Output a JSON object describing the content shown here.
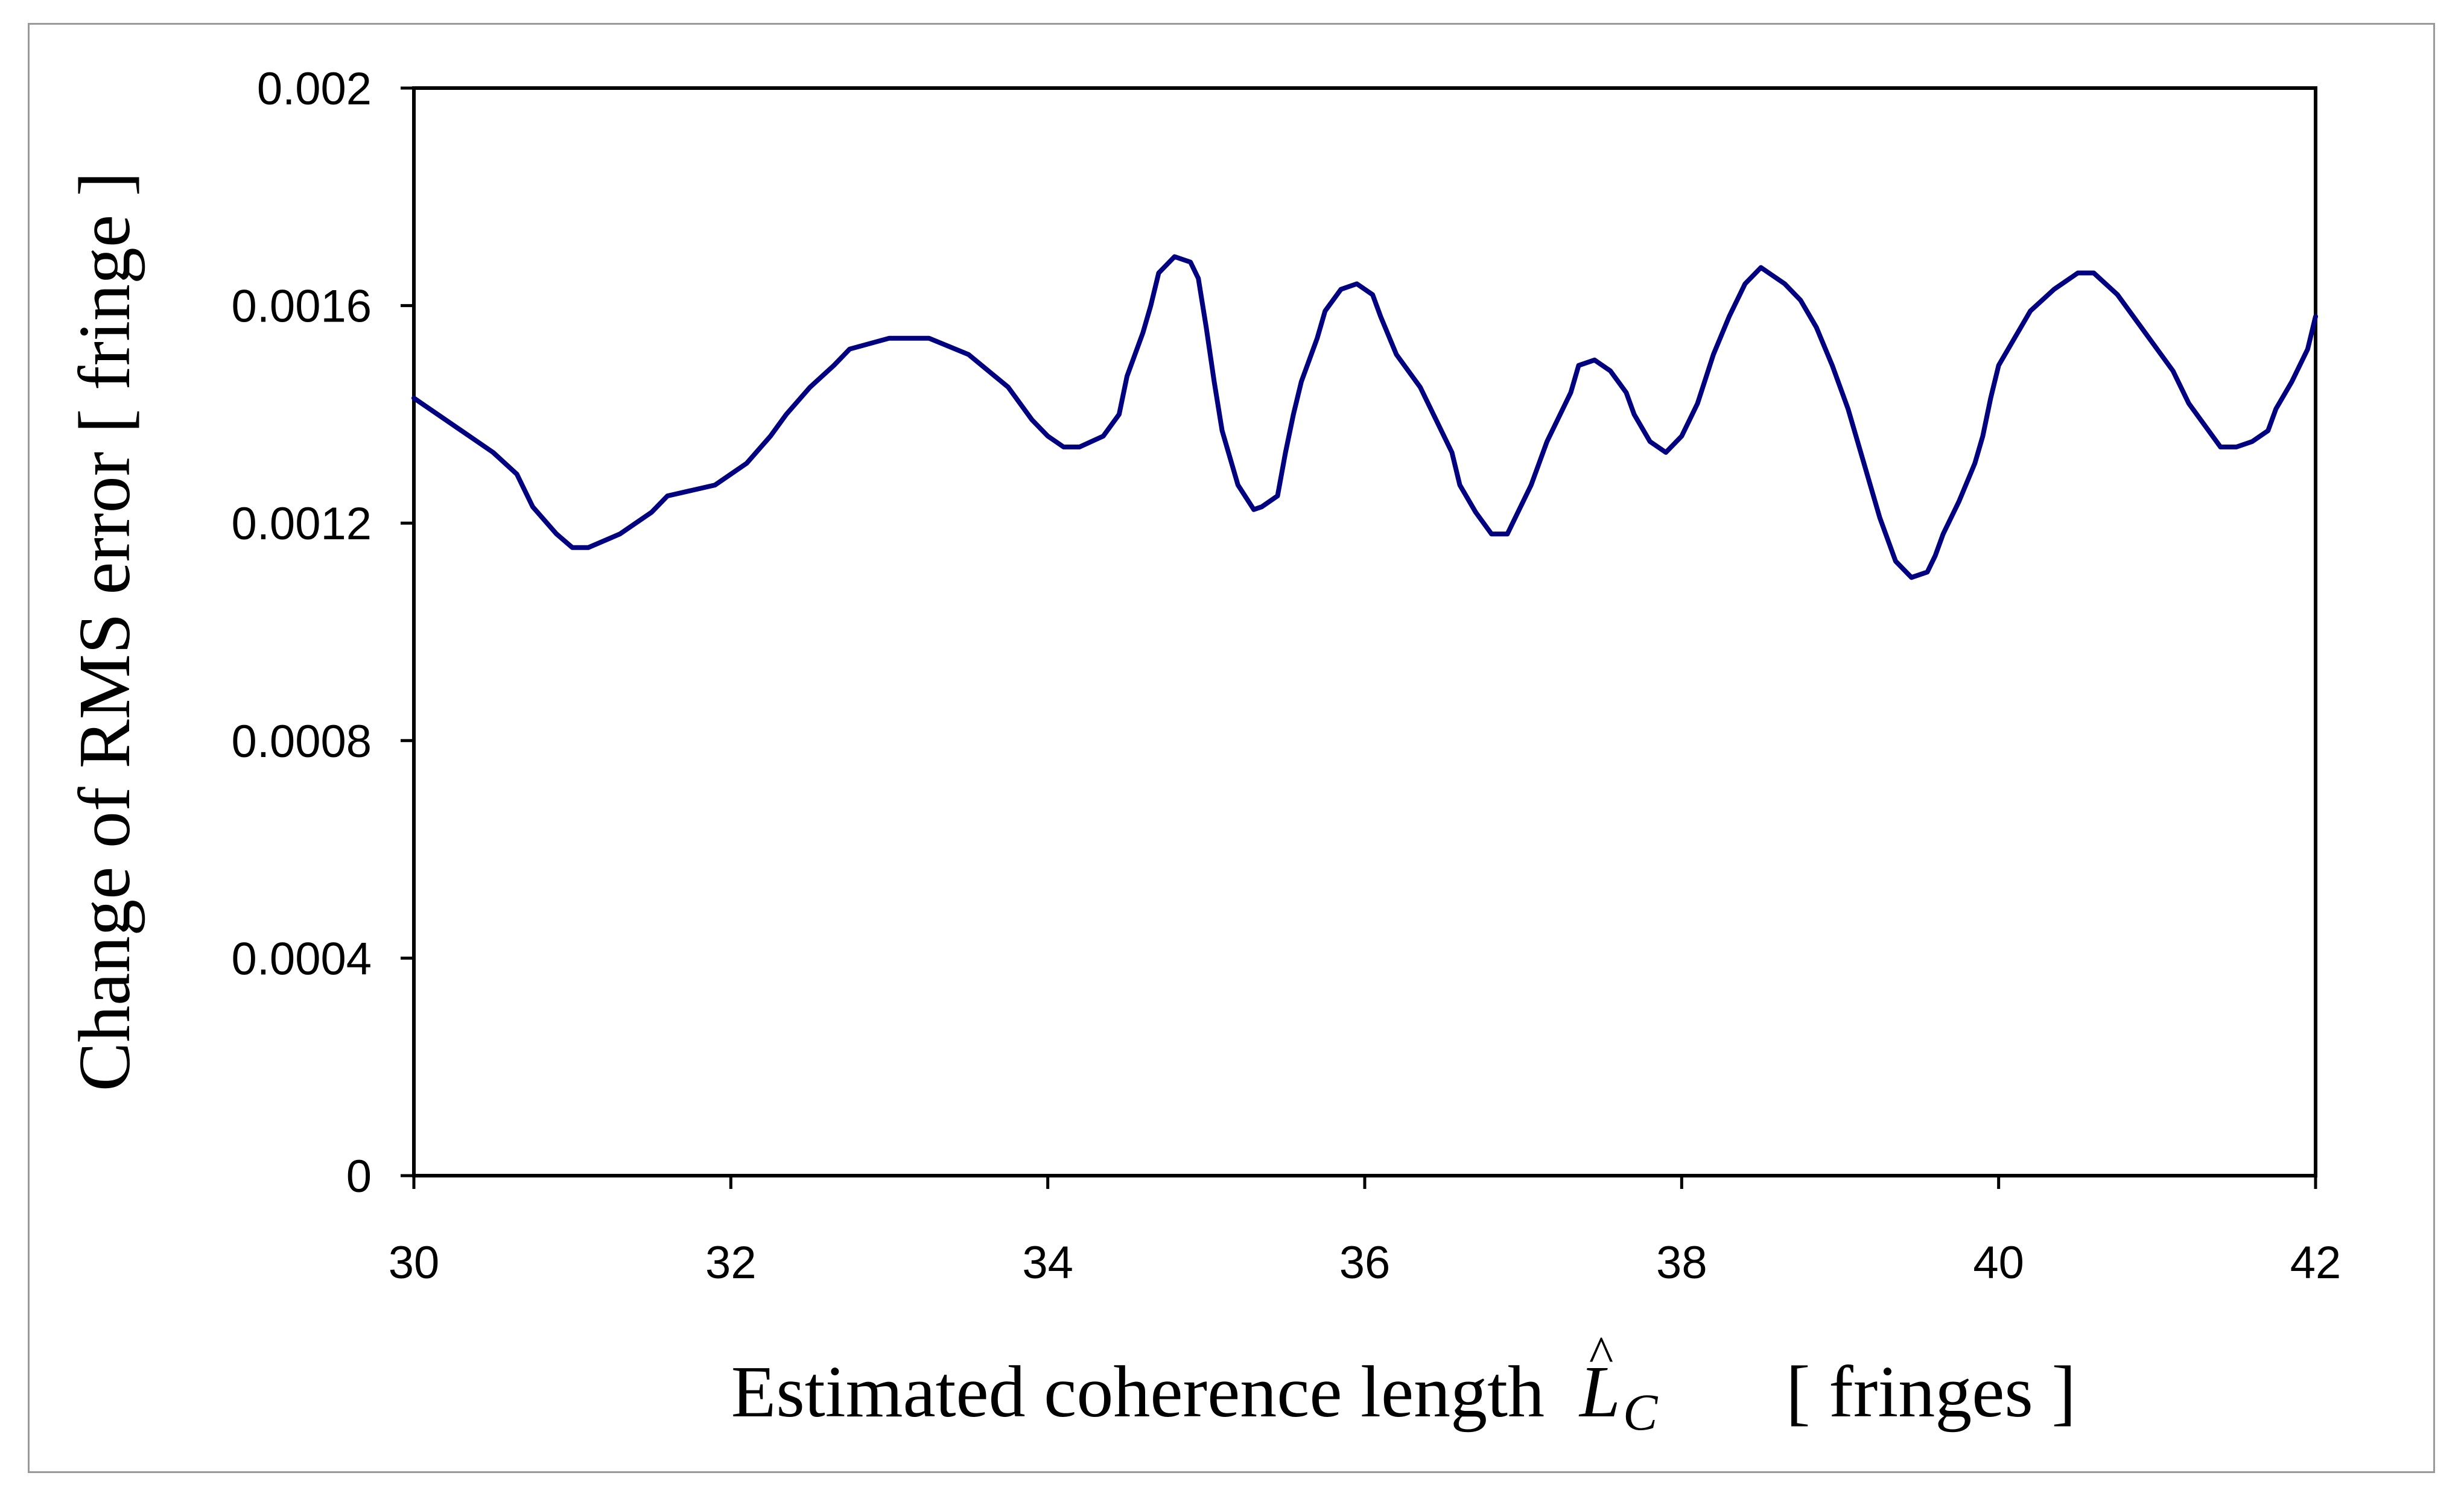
{
  "chart_data": {
    "type": "line",
    "title": "",
    "xlabel": {
      "prefix": "Estimated coherence length",
      "symbol": "L",
      "symbol_subscript": "C",
      "symbol_accent": "^",
      "unit": "[ fringes ]"
    },
    "ylabel": "Change of RMS error [ fringe ]",
    "xlim": [
      30,
      42
    ],
    "ylim": [
      0,
      0.002
    ],
    "x_ticks": [
      30,
      32,
      34,
      36,
      38,
      40,
      42
    ],
    "x_tick_labels": [
      "30",
      "32",
      "34",
      "36",
      "38",
      "40",
      "42"
    ],
    "y_ticks": [
      0,
      0.0004,
      0.0008,
      0.0012,
      0.0016,
      0.002
    ],
    "y_tick_labels": [
      "0",
      "0.0004",
      "0.0008",
      "0.0012",
      "0.0016",
      "0.002"
    ],
    "grid": false,
    "legend": "none",
    "series": [
      {
        "color": "#000080",
        "x": [
          30.0,
          30.2,
          30.4,
          30.5,
          30.65,
          30.75,
          30.9,
          31.0,
          31.1,
          31.3,
          31.5,
          31.6,
          31.75,
          31.9,
          32.0,
          32.1,
          32.25,
          32.35,
          32.5,
          32.65,
          32.75,
          33.0,
          33.25,
          33.5,
          33.75,
          33.9,
          34.0,
          34.1,
          34.2,
          34.35,
          34.45,
          34.5,
          34.6,
          34.65,
          34.7,
          34.8,
          34.9,
          34.95,
          35.0,
          35.05,
          35.1,
          35.2,
          35.3,
          35.35,
          35.45,
          35.5,
          35.55,
          35.6,
          35.7,
          35.75,
          35.85,
          35.95,
          36.05,
          36.1,
          36.2,
          36.35,
          36.45,
          36.55,
          36.6,
          36.7,
          36.8,
          36.9,
          36.95,
          37.05,
          37.15,
          37.3,
          37.35,
          37.45,
          37.55,
          37.65,
          37.7,
          37.8,
          37.9,
          38.0,
          38.1,
          38.2,
          38.3,
          38.4,
          38.5,
          38.55,
          38.65,
          38.75,
          38.85,
          38.95,
          39.05,
          39.15,
          39.25,
          39.35,
          39.45,
          39.55,
          39.6,
          39.65,
          39.75,
          39.85,
          39.9,
          39.95,
          40.0,
          40.1,
          40.2,
          40.35,
          40.5,
          40.6,
          40.75,
          40.85,
          41.0,
          41.1,
          41.2,
          41.3,
          41.4,
          41.5,
          41.6,
          41.7,
          41.75,
          41.85,
          41.95,
          42.0
        ],
        "y": [
          0.00143,
          0.00139,
          0.00135,
          0.00133,
          0.00129,
          0.00123,
          0.00118,
          0.001155,
          0.001155,
          0.00118,
          0.00122,
          0.00125,
          0.00126,
          0.00127,
          0.00129,
          0.00131,
          0.00136,
          0.0014,
          0.00145,
          0.00149,
          0.00152,
          0.00154,
          0.00154,
          0.00151,
          0.00145,
          0.00139,
          0.00136,
          0.00134,
          0.00134,
          0.00136,
          0.0014,
          0.00147,
          0.00155,
          0.0016,
          0.00166,
          0.00169,
          0.00168,
          0.00165,
          0.00156,
          0.00146,
          0.00137,
          0.00127,
          0.001225,
          0.00123,
          0.00125,
          0.00133,
          0.0014,
          0.00146,
          0.00154,
          0.00159,
          0.00163,
          0.00164,
          0.00162,
          0.00158,
          0.00151,
          0.00145,
          0.00139,
          0.00133,
          0.00127,
          0.00122,
          0.00118,
          0.00118,
          0.00121,
          0.00127,
          0.00135,
          0.00144,
          0.00149,
          0.0015,
          0.00148,
          0.00144,
          0.0014,
          0.00135,
          0.00133,
          0.00136,
          0.00142,
          0.00151,
          0.00158,
          0.00164,
          0.00167,
          0.00166,
          0.00164,
          0.00161,
          0.00156,
          0.00149,
          0.00141,
          0.00131,
          0.00121,
          0.00113,
          0.0011,
          0.00111,
          0.00114,
          0.00118,
          0.00124,
          0.00131,
          0.00136,
          0.00143,
          0.00149,
          0.00154,
          0.00159,
          0.00163,
          0.00166,
          0.00166,
          0.00162,
          0.00158,
          0.00152,
          0.00148,
          0.00142,
          0.00138,
          0.00134,
          0.00134,
          0.00135,
          0.00137,
          0.00141,
          0.00146,
          0.00152,
          0.00158
        ]
      }
    ]
  }
}
